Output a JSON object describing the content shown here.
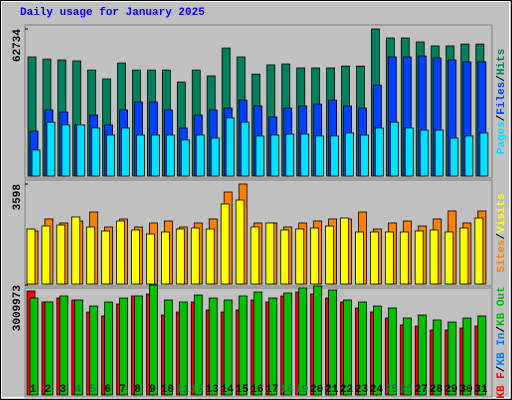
{
  "separator": "/",
  "chart_data": [
    {
      "type": "bar",
      "title": "Daily usage for January 2025",
      "ylim": [
        0,
        62734
      ],
      "yticks": [
        62734
      ],
      "legend": [
        {
          "name": "Pages",
          "color": "#00e0ff"
        },
        {
          "name": "Files",
          "color": "#0040ff"
        },
        {
          "name": "Hits",
          "color": "#00805c"
        }
      ],
      "series": [
        {
          "color": "#00805c",
          "values": [
            50800,
            49900,
            49500,
            49100,
            45200,
            41400,
            48200,
            45200,
            45200,
            45200,
            40100,
            45200,
            42700,
            54600,
            50800,
            43500,
            47400,
            47800,
            46100,
            46100,
            46100,
            46900,
            46900,
            62734,
            58900,
            58900,
            57200,
            55500,
            55500,
            56300,
            56300
          ]
        },
        {
          "color": "#0040ff",
          "values": [
            19200,
            28200,
            27300,
            21800,
            26000,
            21800,
            28200,
            31600,
            31600,
            28200,
            20500,
            26000,
            28200,
            29000,
            32400,
            29900,
            25200,
            29000,
            29900,
            30700,
            32400,
            29900,
            29000,
            38800,
            50800,
            50800,
            51200,
            50400,
            49500,
            48700,
            48700
          ]
        },
        {
          "color": "#00e0ff",
          "values": [
            11100,
            23000,
            21800,
            21800,
            20500,
            17500,
            20500,
            17500,
            17500,
            17500,
            15400,
            17500,
            16200,
            24800,
            23000,
            17100,
            17500,
            17900,
            17900,
            17100,
            17100,
            18400,
            17500,
            20500,
            23000,
            20500,
            19600,
            19600,
            16200,
            17100,
            18400
          ]
        }
      ]
    },
    {
      "type": "bar",
      "ylim": [
        0,
        3598
      ],
      "yticks": [
        3598
      ],
      "legend": [
        {
          "name": "Sites",
          "color": "#ff8000"
        },
        {
          "name": "Visits",
          "color": "#ffff00"
        }
      ],
      "series": [
        {
          "color": "#ff8000",
          "values": [
            1907,
            2339,
            2195,
            2267,
            2591,
            2051,
            2339,
            2051,
            2195,
            2267,
            2051,
            2195,
            2339,
            3310,
            3598,
            2195,
            2195,
            2051,
            2195,
            2267,
            2339,
            2339,
            2591,
            1979,
            2195,
            2267,
            2087,
            2339,
            2627,
            2195,
            2627
          ]
        },
        {
          "color": "#ffff00",
          "values": [
            1979,
            2087,
            2123,
            2411,
            2051,
            1907,
            2267,
            1943,
            1799,
            1871,
            1979,
            2015,
            1979,
            2878,
            3022,
            2051,
            2195,
            1943,
            1979,
            2015,
            2087,
            2375,
            1871,
            1871,
            1871,
            1871,
            1907,
            1943,
            1871,
            2015,
            2375
          ]
        }
      ]
    },
    {
      "type": "bar",
      "ylim": [
        0,
        3009973
      ],
      "yticks": [
        3009973
      ],
      "legend": [
        {
          "name": "KB F",
          "color": "#ff0000"
        },
        {
          "name": "KB In",
          "color": "#0080ff"
        },
        {
          "name": "KB Out",
          "color": "#00c000"
        }
      ],
      "series": [
        {
          "color": "#ff0000",
          "values": [
            2846000,
            2545000,
            2654000,
            2599000,
            2271000,
            2162000,
            2490000,
            2709000,
            2764000,
            2189000,
            2271000,
            2545000,
            2326000,
            2271000,
            2326000,
            2599000,
            2545000,
            2709000,
            2818000,
            2764000,
            2654000,
            2545000,
            2381000,
            2271000,
            2107000,
            1915000,
            1888000,
            1779000,
            1779000,
            1833000,
            1888000
          ]
        },
        {
          "color": "#00c000",
          "values": [
            2654000,
            2545000,
            2709000,
            2599000,
            2435000,
            2545000,
            2654000,
            2709000,
            3009973,
            2599000,
            2545000,
            2736000,
            2654000,
            2599000,
            2709000,
            2818000,
            2654000,
            2791000,
            2928000,
            2983000,
            2873000,
            2599000,
            2545000,
            2435000,
            2381000,
            2107000,
            2189000,
            2052000,
            1997000,
            2107000,
            2162000
          ]
        }
      ],
      "categories": [
        "1",
        "2",
        "3",
        "4",
        "5",
        "6",
        "7",
        "8",
        "9",
        "10",
        "11",
        "12",
        "13",
        "14",
        "15",
        "16",
        "17",
        "18",
        "19",
        "20",
        "21",
        "22",
        "23",
        "24",
        "25",
        "26",
        "27",
        "28",
        "29",
        "30",
        "31"
      ],
      "highlight": [
        3,
        4,
        10,
        11,
        17,
        18,
        24,
        25
      ],
      "highlight_color": "#008040"
    }
  ]
}
